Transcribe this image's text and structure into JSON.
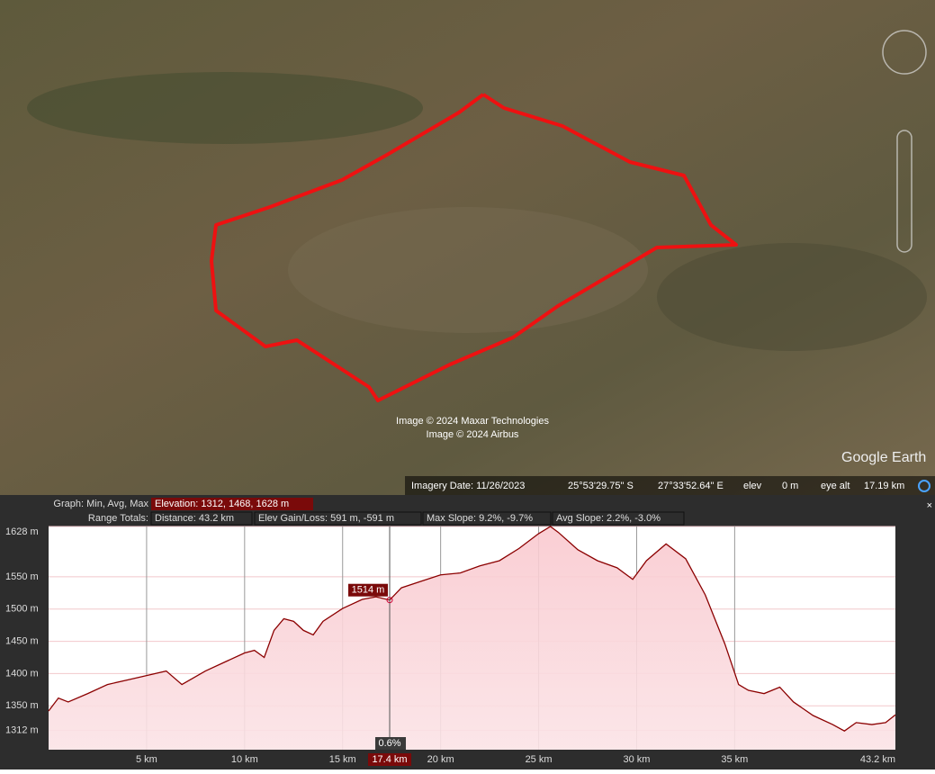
{
  "map": {
    "credits": [
      "Image © 2024 Maxar Technologies",
      "Image © 2024 Airbus"
    ],
    "logo": "Google Earth",
    "status": {
      "imagery_date": "Imagery Date: 11/26/2023",
      "lat": "25°53'29.75\" S",
      "lon": "27°33'52.64\" E",
      "elev_label": "elev",
      "elev": "0 m",
      "eye_alt_label": "eye alt",
      "eye_alt": "17.19 km"
    }
  },
  "graph_header": {
    "graph_label": "Graph: Min, Avg, Max",
    "elevation": "Elevation: 1312, 1468, 1628 m",
    "range_label": "Range Totals:",
    "distance": "Distance: 43.2 km",
    "gain_loss": "Elev Gain/Loss: 591 m, -591 m",
    "max_slope": "Max Slope: 9.2%, -9.7%",
    "avg_slope": "Avg Slope: 2.2%, -3.0%",
    "close": "×"
  },
  "chart_data": {
    "type": "area",
    "color": "#8b0000",
    "x": [
      0,
      0.5,
      1,
      2,
      3,
      4,
      5,
      6,
      6.8,
      8,
      9,
      10,
      10.5,
      11,
      11.5,
      12,
      12.5,
      13,
      13.5,
      14,
      15,
      16,
      16.7,
      17.4,
      18,
      19,
      20,
      21,
      22,
      23,
      24,
      25,
      25.6,
      26,
      27,
      28,
      29,
      29.8,
      30.5,
      31.5,
      32.5,
      33.5,
      34.5,
      35.2,
      35.7,
      36.5,
      37.3,
      38,
      39,
      40,
      40.6,
      41.2,
      42,
      42.7,
      43.2
    ],
    "values": [
      1342,
      1362,
      1356,
      1369,
      1383,
      1390,
      1397,
      1404,
      1383,
      1404,
      1418,
      1432,
      1436,
      1425,
      1467,
      1485,
      1481,
      1467,
      1460,
      1481,
      1501,
      1515,
      1519,
      1514,
      1533,
      1543,
      1553,
      1556,
      1567,
      1575,
      1594,
      1617,
      1628,
      1619,
      1592,
      1575,
      1564,
      1546,
      1575,
      1601,
      1578,
      1522,
      1446,
      1383,
      1374,
      1369,
      1379,
      1356,
      1335,
      1321,
      1311,
      1324,
      1321,
      1324,
      1336
    ],
    "xlim": [
      0,
      43.2
    ],
    "xticks": [
      {
        "value": 5,
        "label": "5 km"
      },
      {
        "value": 10,
        "label": "10 km"
      },
      {
        "value": 15,
        "label": "15 km"
      },
      {
        "value": 20,
        "label": "20 km"
      },
      {
        "value": 25,
        "label": "25 km"
      },
      {
        "value": 30,
        "label": "30 km"
      },
      {
        "value": 35,
        "label": "35 km"
      },
      {
        "value": 43.2,
        "label": "43.2 km"
      }
    ],
    "ylim": [
      1282,
      1628
    ],
    "yticks": [
      {
        "value": 1312,
        "label": "1312 m"
      },
      {
        "value": 1350,
        "label": "1350 m"
      },
      {
        "value": 1400,
        "label": "1400 m"
      },
      {
        "value": 1450,
        "label": "1450 m"
      },
      {
        "value": 1500,
        "label": "1500 m"
      },
      {
        "value": 1550,
        "label": "1550 m"
      },
      {
        "value": 1628,
        "label": "1628 m"
      }
    ],
    "grid": true,
    "cursor": {
      "x": 17.4,
      "x_label": "17.4 km",
      "value": 1514,
      "value_label": "1514 m",
      "slope_label": "0.6%"
    }
  }
}
